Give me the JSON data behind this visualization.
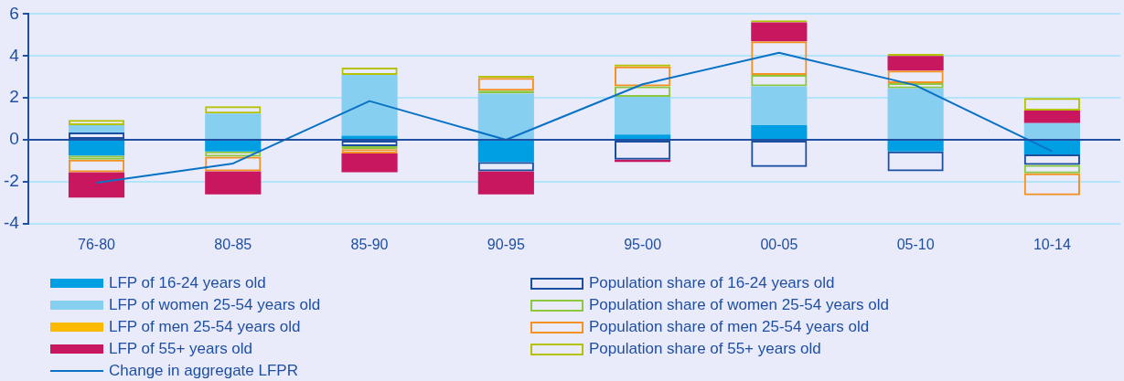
{
  "chart_data": {
    "type": "bar",
    "stacked": true,
    "categories": [
      "76-80",
      "80-85",
      "85-90",
      "90-95",
      "95-00",
      "00-05",
      "05-10",
      "10-14"
    ],
    "ylim": [
      -4,
      6
    ],
    "ref_lines": [
      {
        "axis": "y",
        "value": 0,
        "color": "#1f4fa3"
      }
    ],
    "yticks": [
      -4,
      -2,
      0,
      2,
      4,
      6
    ],
    "grid": "y",
    "legend": "bottom",
    "series": [
      {
        "name": "LFP of 16-24 years old",
        "color": "#009fe3",
        "values": [
          -0.75,
          -0.55,
          0.2,
          -1.05,
          0.25,
          0.7,
          -0.55,
          -0.7
        ]
      },
      {
        "name": "Population share of 16-24 years old",
        "color": "#1a4fa0",
        "values": [
          0.35,
          0,
          -0.3,
          -0.45,
          -0.95,
          -1.3,
          -0.95,
          -0.5
        ]
      },
      {
        "name": "LFP of women 25-54 years old",
        "color": "#87cff0",
        "values": [
          0.35,
          1.25,
          2.9,
          2.2,
          1.8,
          1.85,
          2.45,
          0.8
        ]
      },
      {
        "name": "Population share of women 25-54 years old",
        "color": "#8dc63f",
        "values": [
          -0.2,
          -0.25,
          -0.15,
          0.15,
          0.5,
          0.55,
          0.25,
          -0.4
        ]
      },
      {
        "name": "LFP of men 25-54 years old",
        "color": "#fbba00",
        "values": [
          0,
          0,
          0,
          0,
          0,
          0,
          0,
          0
        ]
      },
      {
        "name": "Population share of men 25-54 years old",
        "color": "#f39222",
        "values": [
          -0.6,
          -0.7,
          -0.2,
          0.6,
          0.95,
          1.6,
          0.6,
          -1.05
        ]
      },
      {
        "name": "LFP of 55+ years old",
        "color": "#c8175e",
        "values": [
          -1.2,
          -1.1,
          -0.9,
          -1.1,
          -0.1,
          0.9,
          0.7,
          0.6
        ]
      },
      {
        "name": "Population share of 55+ years old",
        "color": "#b5c200",
        "values": [
          0.25,
          0.35,
          0.35,
          0.1,
          0.1,
          0.1,
          0.1,
          0.6
        ]
      },
      {
        "name": "Change in aggregate LFPR",
        "type": "line",
        "color": "#0a72c4",
        "marker": "none",
        "values": [
          -2.05,
          -1.13,
          1.85,
          0,
          2.65,
          4.15,
          2.6,
          -0.55
        ]
      }
    ]
  }
}
